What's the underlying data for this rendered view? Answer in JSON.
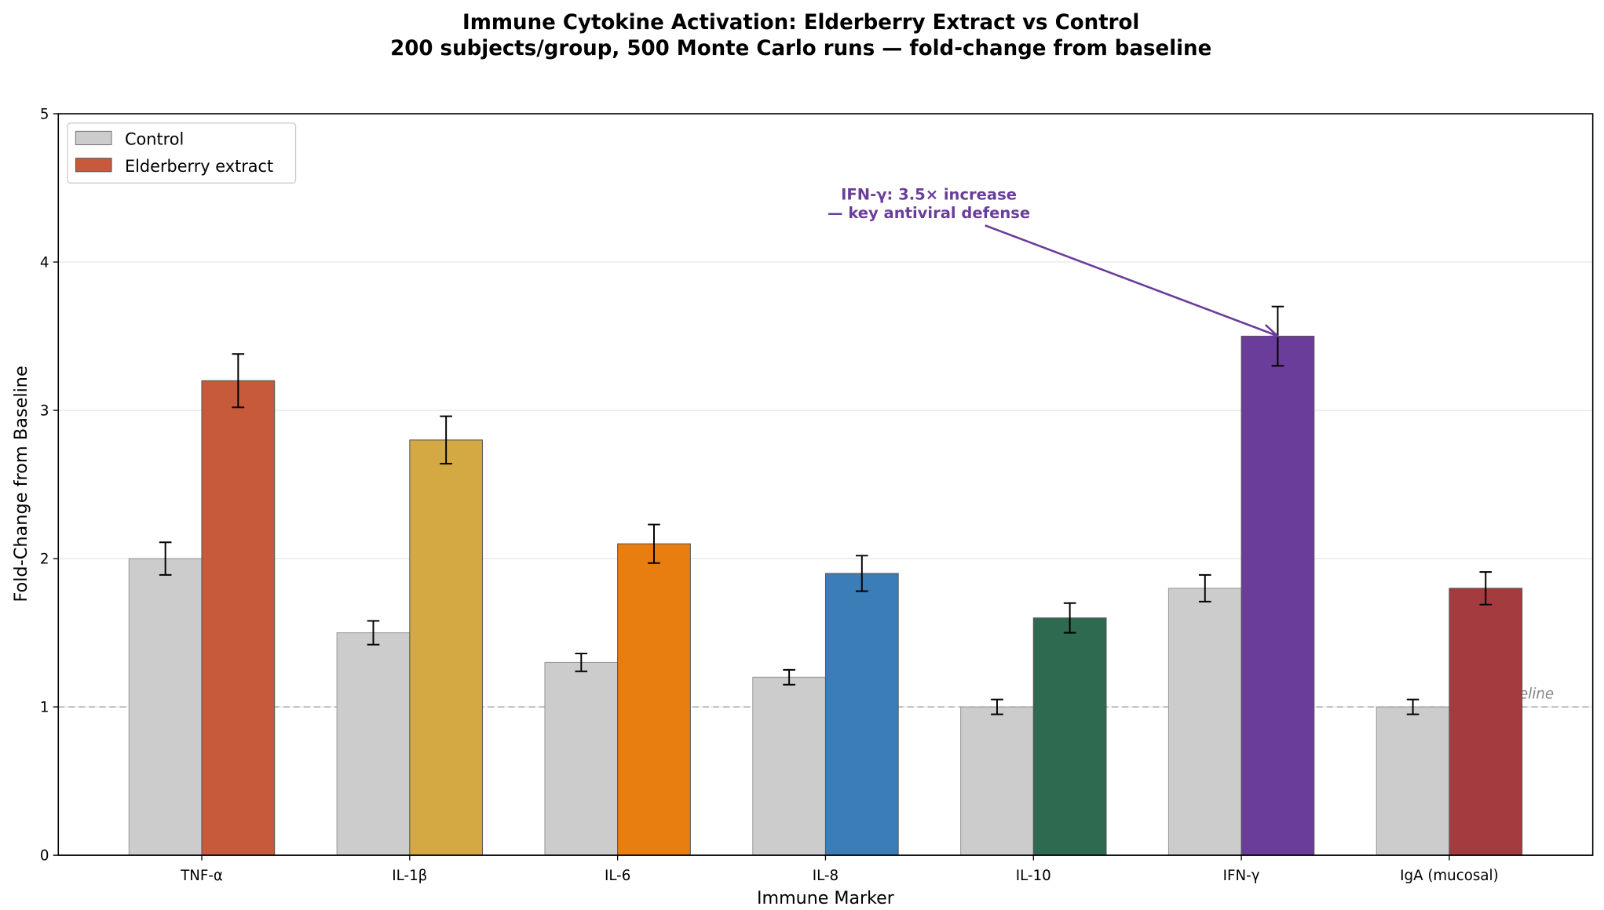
{
  "chart_data": {
    "type": "bar",
    "title": "Immune Cytokine Activation: Elderberry Extract vs Control",
    "subtitle": "200 subjects/group, 500 Monte Carlo runs — fold-change from baseline",
    "xlabel": "Immune Marker",
    "ylabel": "Fold-Change from Baseline",
    "categories": [
      "TNF-α",
      "IL-1β",
      "IL-6",
      "IL-8",
      "IL-10",
      "IFN-γ",
      "IgA (mucosal)"
    ],
    "ylim": [
      0,
      5
    ],
    "yticks": [
      "0",
      "1",
      "2",
      "3",
      "4",
      "5"
    ],
    "grid": "y",
    "legend_position": "upper-left",
    "series": [
      {
        "name": "Control",
        "values": [
          2.0,
          1.5,
          1.3,
          1.2,
          1.0,
          1.8,
          1.0
        ],
        "errors": [
          0.11,
          0.08,
          0.06,
          0.05,
          0.05,
          0.09,
          0.05
        ],
        "colors": [
          "#cccccc",
          "#cccccc",
          "#cccccc",
          "#cccccc",
          "#cccccc",
          "#cccccc",
          "#cccccc"
        ]
      },
      {
        "name": "Elderberry extract",
        "values": [
          3.2,
          2.8,
          2.1,
          1.9,
          1.6,
          3.5,
          1.8
        ],
        "errors": [
          0.18,
          0.16,
          0.13,
          0.12,
          0.1,
          0.2,
          0.11
        ],
        "colors": [
          "#c65a3a",
          "#d4a843",
          "#e87e10",
          "#3a7db7",
          "#2d6a4f",
          "#6a3d9a",
          "#a33b3f"
        ]
      }
    ],
    "reference_line": {
      "y": 1,
      "label": "Baseline",
      "color": "#aaaaaa"
    },
    "annotation": {
      "lines": [
        "IFN-γ: 3.5× increase",
        "— key antiviral defense"
      ],
      "target_category": "IFN-γ",
      "target_y": 3.5,
      "color": "#6a3d9a"
    }
  }
}
